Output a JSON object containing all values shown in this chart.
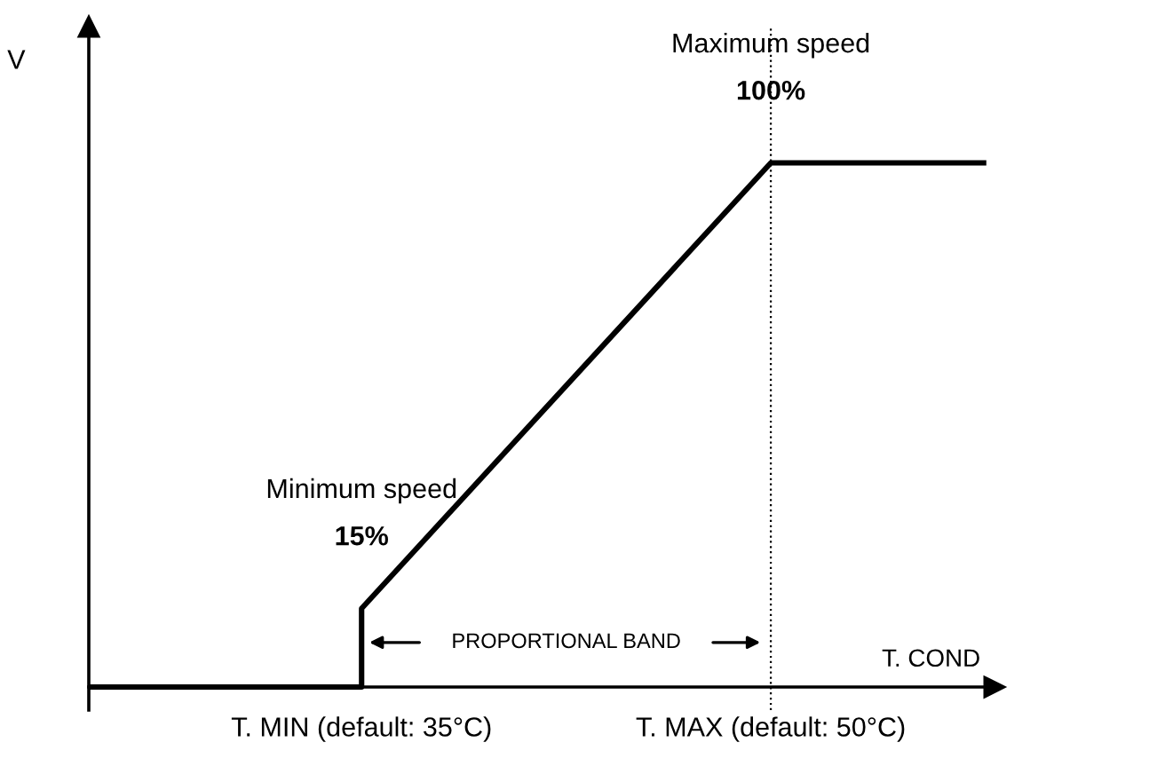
{
  "chart_data": {
    "type": "line",
    "xlabel": "T. COND",
    "ylabel": "V",
    "x": [
      25,
      35,
      35,
      50,
      57.8
    ],
    "series": [
      {
        "color": "#000000",
        "values": [
          0,
          0,
          15,
          100,
          100
        ],
        "value_labels": [
          null,
          null,
          "15%",
          "100%",
          null
        ]
      }
    ],
    "xlim": [
      25,
      58.2
    ],
    "ylim": [
      -4.4,
      126
    ],
    "xticks": [
      {
        "value": 35,
        "label": "T. MIN (default: 35°C)"
      },
      {
        "value": 50,
        "label": "T. MAX (default: 50°C)"
      }
    ],
    "ref_lines": [
      {
        "axis": "x",
        "value": 50,
        "label": null,
        "color": "#000000",
        "line_style": "dotted"
      }
    ],
    "annotations": [
      "Minimum speed",
      "Maximum speed",
      "PROPORTIONAL BAND"
    ],
    "grid": false,
    "legend": false,
    "line_style": "solid",
    "marker": "none"
  }
}
